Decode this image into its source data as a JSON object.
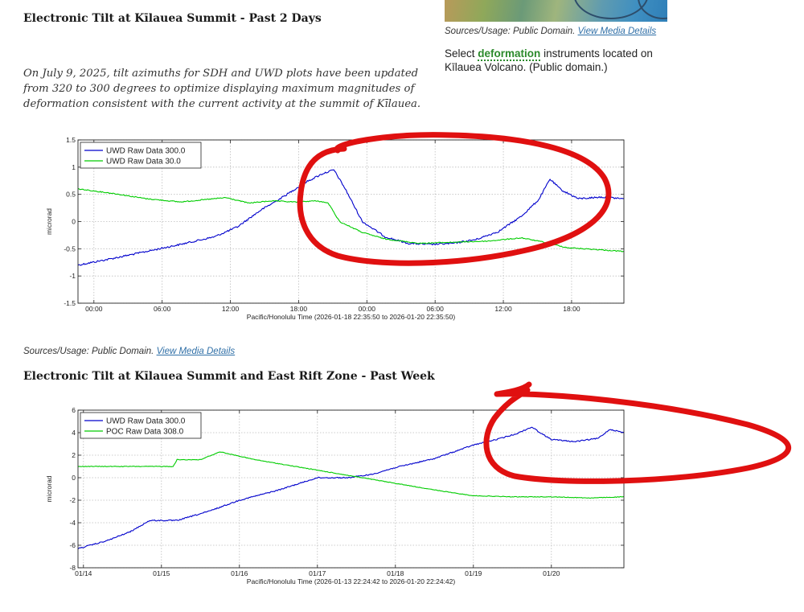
{
  "page": {
    "heading1": "Electronic Tilt at Kīlauea Summit - Past 2 Days",
    "note": "On July 9, 2025, tilt azimuths for SDH and UWD plots have been updated from 320 to 300 degrees to optimize displaying maximum magnitudes of deformation consistent with the current activity at the summit of Kīlauea.",
    "map_source_prefix": "Sources/Usage: Public Domain.",
    "map_source_link": "View Media Details",
    "select_before": "Select",
    "select_keyword": "deformation",
    "select_after": "instruments located on Kīlauea Volcano. (Public domain.)",
    "chart1_source_prefix": "Sources/Usage: Public Domain.",
    "chart1_source_link": "View Media Details",
    "heading2": "Electronic Tilt at Kīlauea Summit and East Rift Zone - Past Week"
  },
  "colors": {
    "series_blue": "#0000cc",
    "series_green": "#00cc00",
    "annotation_red": "#e01010",
    "link": "#2f6fa7",
    "keyword": "#2b8a2b"
  },
  "chart_data": [
    {
      "type": "line",
      "ylabel": "microrad",
      "xlabel": "Pacific/Honolulu Time (2026-01-18 22:35:50 to 2026-01-20 22:35:50)",
      "x_unit": "hours since 2026-01-18 22:35:50",
      "xlim": [
        0,
        48
      ],
      "ylim": [
        -1.5,
        1.5
      ],
      "yticks": [
        -1.5,
        -1,
        -0.5,
        0,
        0.5,
        1,
        1.5
      ],
      "yticklabels": [
        "-1.5",
        "-1",
        "-0.5",
        "0",
        "0.5",
        "1",
        "1.5"
      ],
      "xticks": [
        1.4,
        7.4,
        13.4,
        19.4,
        25.4,
        31.4,
        37.4,
        43.4
      ],
      "xticklabels": [
        "00:00",
        "06:00",
        "12:00",
        "18:00",
        "00:00",
        "06:00",
        "12:00",
        "18:00"
      ],
      "grid": true,
      "legend": "top-left",
      "series": [
        {
          "name": "UWD Raw Data 300.0",
          "color": "#0000cc",
          "x": [
            0,
            3,
            6,
            9,
            12,
            14,
            16,
            18,
            20,
            21.5,
            22.5,
            23.5,
            25,
            27,
            29,
            31,
            33,
            35,
            37,
            39,
            40.5,
            41.5,
            42.5,
            44,
            46,
            48
          ],
          "y": [
            -0.8,
            -0.68,
            -0.55,
            -0.42,
            -0.28,
            -0.1,
            0.2,
            0.45,
            0.72,
            0.88,
            0.95,
            0.6,
            0.0,
            -0.28,
            -0.4,
            -0.42,
            -0.4,
            -0.33,
            -0.18,
            0.1,
            0.4,
            0.78,
            0.58,
            0.42,
            0.45,
            0.42
          ]
        },
        {
          "name": "UWD Raw Data 30.0",
          "color": "#00cc00",
          "x": [
            0,
            3,
            6,
            9,
            11,
            13,
            15,
            17,
            19,
            21,
            22,
            23,
            24,
            25,
            27,
            30,
            33,
            36,
            39,
            41,
            43,
            46,
            48
          ],
          "y": [
            0.6,
            0.52,
            0.42,
            0.36,
            0.4,
            0.44,
            0.34,
            0.38,
            0.36,
            0.38,
            0.34,
            0.0,
            -0.1,
            -0.2,
            -0.32,
            -0.4,
            -0.38,
            -0.36,
            -0.3,
            -0.38,
            -0.48,
            -0.52,
            -0.55
          ]
        }
      ]
    },
    {
      "type": "line",
      "ylabel": "microrad",
      "xlabel": "Pacific/Honolulu Time (2026-01-13 22:24:42 to 2026-01-20 22:24:42)",
      "x_unit": "days since 2026-01-14 00:00",
      "xlim": [
        -0.07,
        6.93
      ],
      "ylim": [
        -8,
        6
      ],
      "yticks": [
        -8,
        -6,
        -4,
        -2,
        0,
        2,
        4,
        6
      ],
      "yticklabels": [
        "-8",
        "-6",
        "-4",
        "-2",
        "0",
        "2",
        "4",
        "6"
      ],
      "xticks": [
        0,
        1,
        2,
        3,
        4,
        5,
        6
      ],
      "xticklabels": [
        "01/14",
        "01/15",
        "01/16",
        "01/17",
        "01/18",
        "01/19",
        "01/20"
      ],
      "grid": true,
      "legend": "top-left",
      "series": [
        {
          "name": "UWD Raw Data 300.0",
          "color": "#0000cc",
          "x": [
            -0.07,
            0.3,
            0.6,
            0.85,
            1.2,
            1.6,
            2.0,
            2.5,
            3.0,
            3.4,
            3.7,
            4.0,
            4.5,
            5.0,
            5.3,
            5.55,
            5.75,
            5.9,
            6.0,
            6.3,
            6.6,
            6.75,
            6.93
          ],
          "y": [
            -6.3,
            -5.6,
            -4.8,
            -3.8,
            -3.8,
            -3.0,
            -2.0,
            -1.1,
            0.0,
            0.0,
            0.3,
            0.9,
            1.7,
            2.9,
            3.4,
            3.9,
            4.5,
            3.8,
            3.4,
            3.2,
            3.5,
            4.3,
            4.0
          ]
        },
        {
          "name": "POC Raw Data 308.0",
          "color": "#00cc00",
          "x": [
            -0.07,
            0.5,
            1.15,
            1.2,
            1.5,
            1.75,
            2.2,
            2.8,
            3.4,
            4.0,
            4.6,
            5.0,
            5.5,
            6.0,
            6.5,
            6.93
          ],
          "y": [
            1.0,
            1.0,
            1.0,
            1.6,
            1.6,
            2.3,
            1.6,
            0.9,
            0.2,
            -0.5,
            -1.2,
            -1.6,
            -1.7,
            -1.7,
            -1.8,
            -1.7
          ]
        }
      ]
    }
  ]
}
